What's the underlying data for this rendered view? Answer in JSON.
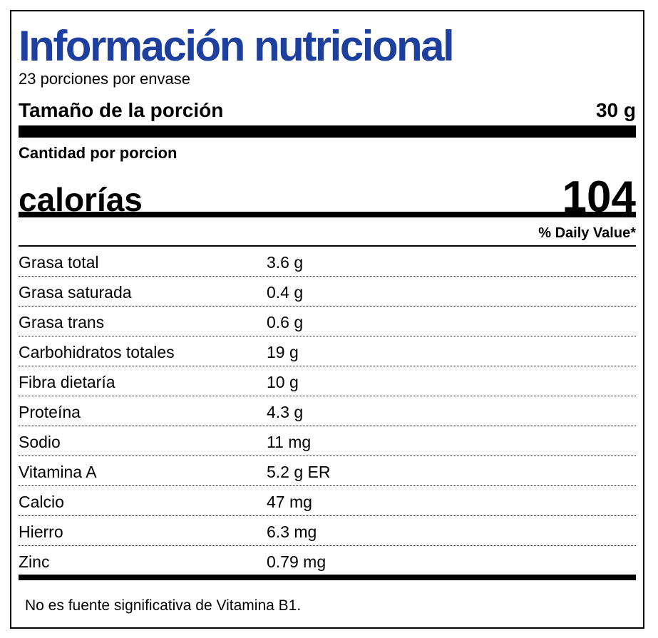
{
  "label": {
    "title": "Información nutricional",
    "servings_per_container": "23 porciones por envase",
    "serving_size_label": "Tamaño de la porción",
    "serving_size_value": "30 g",
    "amount_per_serving": "Cantidad por porcion",
    "calories_label": "calorías",
    "calories_value": "104",
    "daily_value_header": "% Daily Value*",
    "nutrients": [
      {
        "name": "Grasa total",
        "amount": "3.6 g"
      },
      {
        "name": "Grasa saturada",
        "amount": "0.4 g"
      },
      {
        "name": "Grasa trans",
        "amount": "0.6 g"
      },
      {
        "name": "Carbohidratos totales",
        "amount": "19 g"
      },
      {
        "name": "Fibra dietaría",
        "amount": "10 g"
      },
      {
        "name": "Proteína",
        "amount": "4.3 g"
      },
      {
        "name": "Sodio",
        "amount": "11 mg"
      },
      {
        "name": "Vitamina A",
        "amount": "5.2 g ER"
      },
      {
        "name": "Calcio",
        "amount": "47 mg"
      },
      {
        "name": "Hierro",
        "amount": "6.3 mg"
      },
      {
        "name": "Zinc",
        "amount": "0.79 mg"
      }
    ],
    "footnote": "No es fuente significativa de Vitamina B1."
  },
  "colors": {
    "title": "#1d3f9e",
    "text": "#000000",
    "background": "#ffffff"
  }
}
